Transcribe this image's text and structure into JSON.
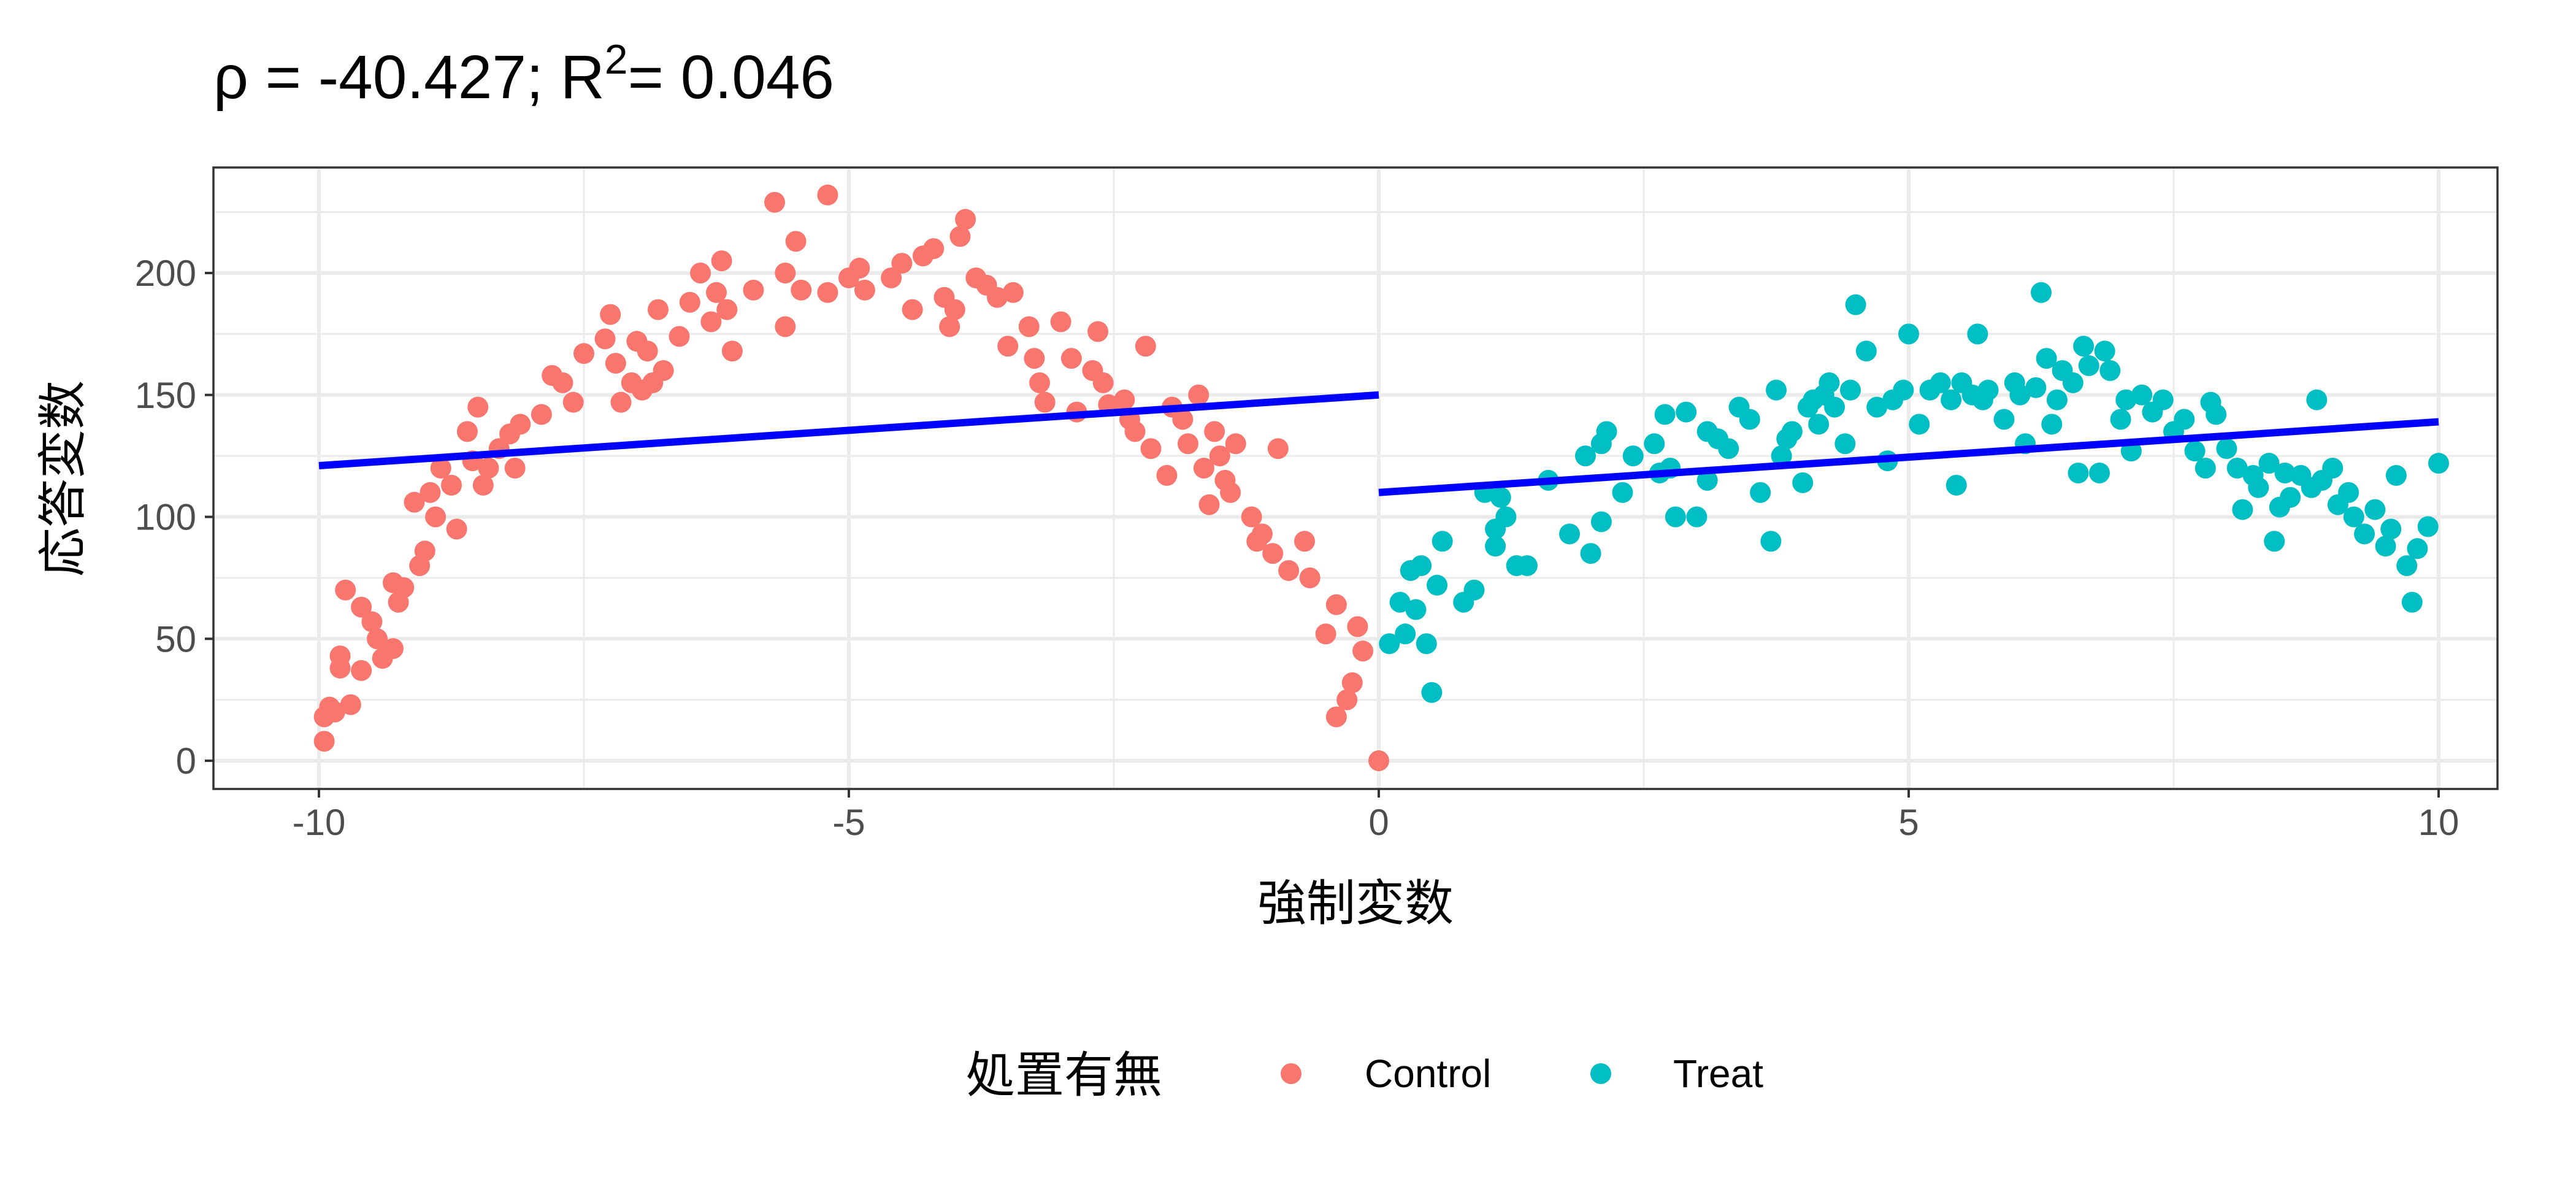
{
  "chart_data": {
    "type": "scatter",
    "title_prefix": "ρ = -40.427; R",
    "title_sup": "2",
    "title_suffix": "= 0.046",
    "xlabel": "強制変数",
    "ylabel": "応答変数",
    "xlim": [
      -11,
      10.5
    ],
    "ylim": [
      -12,
      242
    ],
    "xticks": [
      -10,
      -5,
      0,
      5,
      10
    ],
    "xtick_labels": [
      "-10",
      "-5",
      "0",
      "5",
      "10"
    ],
    "yticks": [
      0,
      50,
      100,
      150,
      200
    ],
    "ytick_labels": [
      "0",
      "50",
      "100",
      "150",
      "200"
    ],
    "grid": true,
    "legend": {
      "title": "処置有無",
      "position": "bottom",
      "entries": [
        "Control",
        "Treat"
      ]
    },
    "colors": {
      "Control": "#F8766D",
      "Treat": "#00BFC4",
      "fit": "#0000FF"
    },
    "fit_lines": [
      {
        "group": "Control",
        "x": [
          -10,
          0
        ],
        "y": [
          121,
          150
        ]
      },
      {
        "group": "Treat",
        "x": [
          0,
          10
        ],
        "y": [
          110,
          139
        ]
      }
    ],
    "series": [
      {
        "name": "Control",
        "points": [
          [
            -9.95,
            8
          ],
          [
            -9.95,
            18
          ],
          [
            -9.9,
            22
          ],
          [
            -9.85,
            20
          ],
          [
            -9.7,
            23
          ],
          [
            -9.8,
            38
          ],
          [
            -9.8,
            43
          ],
          [
            -9.75,
            70
          ],
          [
            -9.6,
            63
          ],
          [
            -9.6,
            37
          ],
          [
            -9.5,
            57
          ],
          [
            -9.45,
            50
          ],
          [
            -9.4,
            42
          ],
          [
            -9.3,
            73
          ],
          [
            -9.3,
            46
          ],
          [
            -9.25,
            65
          ],
          [
            -9.2,
            71
          ],
          [
            -9.1,
            106
          ],
          [
            -9.05,
            80
          ],
          [
            -9.0,
            86
          ],
          [
            -8.95,
            110
          ],
          [
            -8.9,
            100
          ],
          [
            -8.85,
            120
          ],
          [
            -8.75,
            113
          ],
          [
            -8.7,
            95
          ],
          [
            -8.6,
            135
          ],
          [
            -8.55,
            123
          ],
          [
            -8.5,
            145
          ],
          [
            -8.45,
            113
          ],
          [
            -8.4,
            120
          ],
          [
            -8.3,
            128
          ],
          [
            -8.2,
            134
          ],
          [
            -8.1,
            138
          ],
          [
            -8.15,
            120
          ],
          [
            -7.9,
            142
          ],
          [
            -7.8,
            158
          ],
          [
            -7.7,
            155
          ],
          [
            -7.5,
            167
          ],
          [
            -7.6,
            147
          ],
          [
            -7.3,
            173
          ],
          [
            -7.25,
            183
          ],
          [
            -7.2,
            163
          ],
          [
            -7.15,
            147
          ],
          [
            -7.05,
            155
          ],
          [
            -7.0,
            172
          ],
          [
            -6.95,
            152
          ],
          [
            -6.9,
            168
          ],
          [
            -6.85,
            155
          ],
          [
            -6.8,
            185
          ],
          [
            -6.75,
            160
          ],
          [
            -6.6,
            174
          ],
          [
            -6.5,
            188
          ],
          [
            -6.4,
            200
          ],
          [
            -6.3,
            180
          ],
          [
            -6.25,
            192
          ],
          [
            -6.2,
            205
          ],
          [
            -6.15,
            185
          ],
          [
            -6.1,
            168
          ],
          [
            -5.9,
            193
          ],
          [
            -5.7,
            229
          ],
          [
            -5.6,
            178
          ],
          [
            -5.6,
            200
          ],
          [
            -5.5,
            213
          ],
          [
            -5.45,
            193
          ],
          [
            -5.2,
            232
          ],
          [
            -5.2,
            192
          ],
          [
            -5.0,
            198
          ],
          [
            -4.9,
            202
          ],
          [
            -4.85,
            193
          ],
          [
            -4.6,
            198
          ],
          [
            -4.5,
            204
          ],
          [
            -4.4,
            185
          ],
          [
            -4.3,
            207
          ],
          [
            -4.2,
            210
          ],
          [
            -4.1,
            190
          ],
          [
            -4.05,
            178
          ],
          [
            -4.0,
            185
          ],
          [
            -3.9,
            222
          ],
          [
            -3.95,
            215
          ],
          [
            -3.8,
            198
          ],
          [
            -3.7,
            195
          ],
          [
            -3.6,
            190
          ],
          [
            -3.5,
            170
          ],
          [
            -3.45,
            192
          ],
          [
            -3.3,
            178
          ],
          [
            -3.25,
            165
          ],
          [
            -3.2,
            155
          ],
          [
            -3.15,
            147
          ],
          [
            -3.0,
            180
          ],
          [
            -2.9,
            165
          ],
          [
            -2.85,
            143
          ],
          [
            -2.7,
            160
          ],
          [
            -2.65,
            176
          ],
          [
            -2.6,
            155
          ],
          [
            -2.55,
            146
          ],
          [
            -2.4,
            148
          ],
          [
            -2.35,
            140
          ],
          [
            -2.3,
            135
          ],
          [
            -2.2,
            170
          ],
          [
            -2.15,
            128
          ],
          [
            -2.0,
            117
          ],
          [
            -1.95,
            145
          ],
          [
            -1.85,
            140
          ],
          [
            -1.8,
            130
          ],
          [
            -1.7,
            150
          ],
          [
            -1.65,
            120
          ],
          [
            -1.6,
            105
          ],
          [
            -1.55,
            135
          ],
          [
            -1.5,
            125
          ],
          [
            -1.45,
            115
          ],
          [
            -1.4,
            110
          ],
          [
            -1.35,
            130
          ],
          [
            -1.2,
            100
          ],
          [
            -1.15,
            90
          ],
          [
            -1.1,
            93
          ],
          [
            -1.0,
            85
          ],
          [
            -0.95,
            128
          ],
          [
            -0.85,
            78
          ],
          [
            -0.7,
            90
          ],
          [
            -0.65,
            75
          ],
          [
            -0.5,
            52
          ],
          [
            -0.4,
            18
          ],
          [
            -0.4,
            64
          ],
          [
            -0.3,
            25
          ],
          [
            -0.25,
            32
          ],
          [
            -0.2,
            55
          ],
          [
            -0.15,
            45
          ],
          [
            0,
            0
          ]
        ]
      },
      {
        "name": "Treat",
        "points": [
          [
            0.1,
            48
          ],
          [
            0.2,
            65
          ],
          [
            0.25,
            52
          ],
          [
            0.3,
            78
          ],
          [
            0.35,
            62
          ],
          [
            0.4,
            80
          ],
          [
            0.45,
            48
          ],
          [
            0.5,
            28
          ],
          [
            0.55,
            72
          ],
          [
            0.6,
            90
          ],
          [
            0.8,
            65
          ],
          [
            0.9,
            70
          ],
          [
            1.0,
            110
          ],
          [
            1.1,
            88
          ],
          [
            1.1,
            95
          ],
          [
            1.15,
            108
          ],
          [
            1.2,
            100
          ],
          [
            1.3,
            80
          ],
          [
            1.4,
            80
          ],
          [
            1.6,
            115
          ],
          [
            1.8,
            93
          ],
          [
            1.95,
            125
          ],
          [
            2.0,
            85
          ],
          [
            2.1,
            98
          ],
          [
            2.1,
            130
          ],
          [
            2.15,
            135
          ],
          [
            2.3,
            110
          ],
          [
            2.4,
            125
          ],
          [
            2.6,
            130
          ],
          [
            2.65,
            118
          ],
          [
            2.7,
            142
          ],
          [
            2.75,
            120
          ],
          [
            2.8,
            100
          ],
          [
            2.9,
            143
          ],
          [
            3.0,
            100
          ],
          [
            3.1,
            135
          ],
          [
            3.1,
            115
          ],
          [
            3.2,
            132
          ],
          [
            3.3,
            128
          ],
          [
            3.4,
            145
          ],
          [
            3.5,
            140
          ],
          [
            3.6,
            110
          ],
          [
            3.7,
            90
          ],
          [
            3.75,
            152
          ],
          [
            3.8,
            125
          ],
          [
            3.85,
            132
          ],
          [
            3.9,
            135
          ],
          [
            4.0,
            114
          ],
          [
            4.05,
            145
          ],
          [
            4.1,
            148
          ],
          [
            4.15,
            138
          ],
          [
            4.2,
            150
          ],
          [
            4.25,
            155
          ],
          [
            4.3,
            145
          ],
          [
            4.4,
            130
          ],
          [
            4.45,
            152
          ],
          [
            4.5,
            187
          ],
          [
            4.6,
            168
          ],
          [
            4.7,
            145
          ],
          [
            4.8,
            123
          ],
          [
            4.85,
            148
          ],
          [
            4.95,
            152
          ],
          [
            5.0,
            175
          ],
          [
            5.1,
            138
          ],
          [
            5.2,
            152
          ],
          [
            5.3,
            155
          ],
          [
            5.4,
            148
          ],
          [
            5.45,
            113
          ],
          [
            5.5,
            155
          ],
          [
            5.6,
            150
          ],
          [
            5.65,
            175
          ],
          [
            5.7,
            148
          ],
          [
            5.75,
            152
          ],
          [
            5.9,
            140
          ],
          [
            6.0,
            155
          ],
          [
            6.05,
            150
          ],
          [
            6.1,
            130
          ],
          [
            6.2,
            153
          ],
          [
            6.25,
            192
          ],
          [
            6.3,
            165
          ],
          [
            6.35,
            138
          ],
          [
            6.4,
            148
          ],
          [
            6.45,
            160
          ],
          [
            6.55,
            155
          ],
          [
            6.6,
            118
          ],
          [
            6.65,
            170
          ],
          [
            6.7,
            162
          ],
          [
            6.8,
            118
          ],
          [
            6.85,
            168
          ],
          [
            6.9,
            160
          ],
          [
            7.0,
            140
          ],
          [
            7.05,
            148
          ],
          [
            7.1,
            127
          ],
          [
            7.2,
            150
          ],
          [
            7.3,
            143
          ],
          [
            7.4,
            148
          ],
          [
            7.5,
            135
          ],
          [
            7.6,
            140
          ],
          [
            7.7,
            127
          ],
          [
            7.8,
            120
          ],
          [
            7.85,
            147
          ],
          [
            7.9,
            142
          ],
          [
            8.0,
            128
          ],
          [
            8.1,
            120
          ],
          [
            8.15,
            103
          ],
          [
            8.25,
            117
          ],
          [
            8.3,
            112
          ],
          [
            8.4,
            122
          ],
          [
            8.45,
            90
          ],
          [
            8.5,
            104
          ],
          [
            8.55,
            118
          ],
          [
            8.6,
            108
          ],
          [
            8.7,
            117
          ],
          [
            8.8,
            112
          ],
          [
            8.85,
            148
          ],
          [
            8.9,
            115
          ],
          [
            9.0,
            120
          ],
          [
            9.05,
            105
          ],
          [
            9.15,
            110
          ],
          [
            9.2,
            100
          ],
          [
            9.3,
            93
          ],
          [
            9.4,
            103
          ],
          [
            9.5,
            88
          ],
          [
            9.55,
            95
          ],
          [
            9.6,
            117
          ],
          [
            9.7,
            80
          ],
          [
            9.75,
            65
          ],
          [
            9.8,
            87
          ],
          [
            9.9,
            96
          ],
          [
            10.0,
            122
          ]
        ]
      }
    ]
  }
}
